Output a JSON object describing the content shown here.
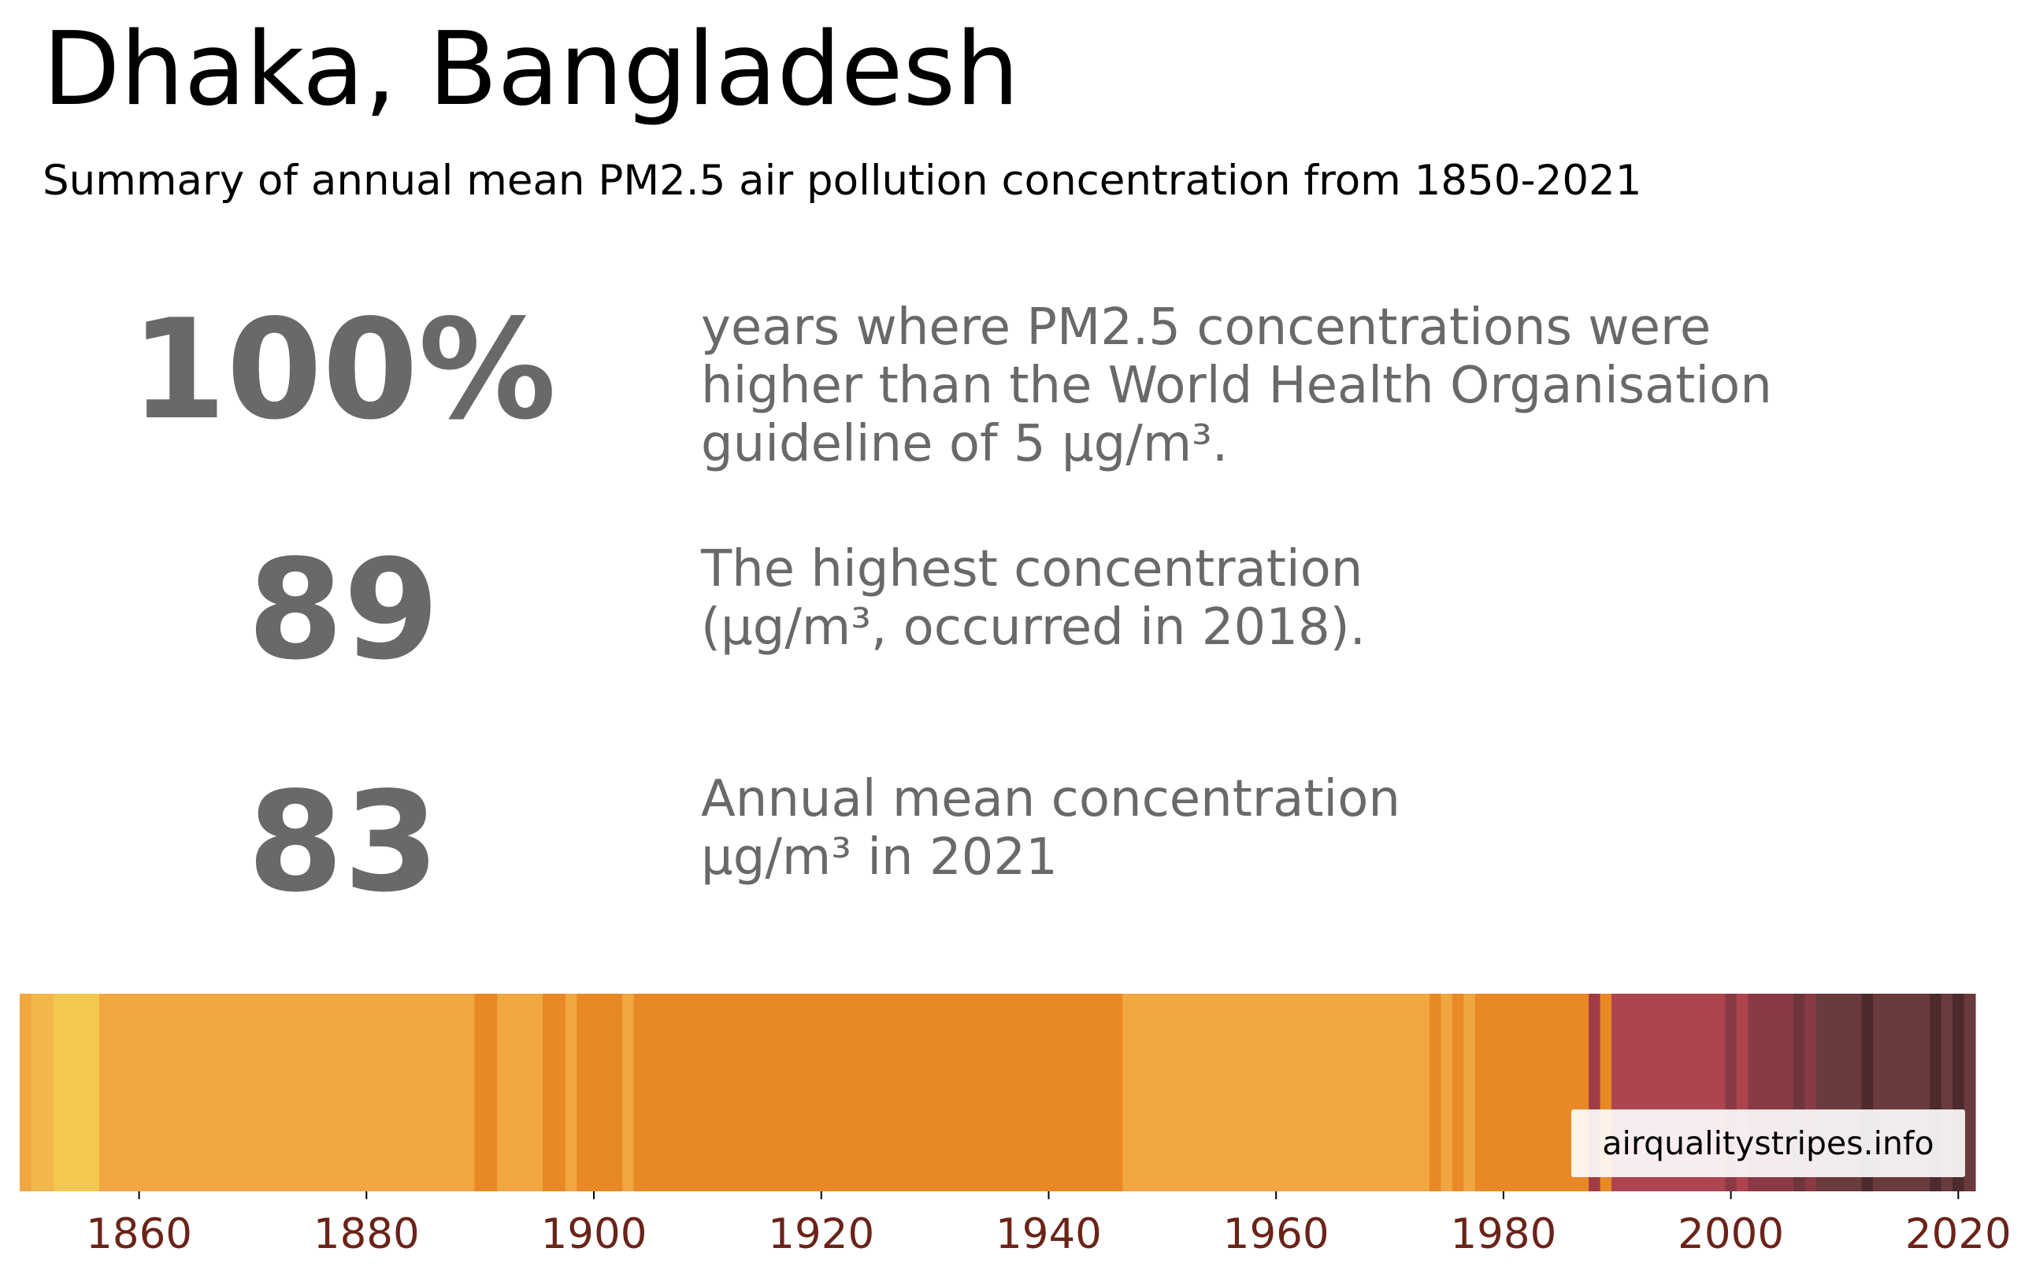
{
  "title": "Dhaka, Bangladesh",
  "subtitle": "Summary of annual mean PM2.5 air pollution concentration from 1850-2021",
  "stats": [
    {
      "value": "100%",
      "lines": [
        "years where PM2.5 concentrations were",
        "higher than the World Health Organisation",
        "guideline of 5 µg/m³."
      ]
    },
    {
      "value": "89",
      "lines": [
        "The highest concentration",
        "(µg/m³, occurred in 2018)."
      ]
    },
    {
      "value": "83",
      "lines": [
        "Annual mean concentration",
        "µg/m³ in 2021"
      ]
    }
  ],
  "credit": "airqualitystripes.info",
  "colors": {
    "tick_label": "#6b2318",
    "stat_text": "#696969"
  },
  "chart_data": {
    "type": "heatmap",
    "x_axis": {
      "range": [
        1850,
        2021
      ],
      "ticks": [
        1860,
        1880,
        1900,
        1920,
        1940,
        1960,
        1980,
        2000,
        2020
      ]
    },
    "stripes": [
      {
        "from": 1850,
        "to": 1850,
        "color": "#f0a641"
      },
      {
        "from": 1851,
        "to": 1852,
        "color": "#f2b74a"
      },
      {
        "from": 1853,
        "to": 1856,
        "color": "#f2c84e"
      },
      {
        "from": 1857,
        "to": 1889,
        "color": "#f0a641"
      },
      {
        "from": 1890,
        "to": 1891,
        "color": "#e88925"
      },
      {
        "from": 1892,
        "to": 1895,
        "color": "#f0a641"
      },
      {
        "from": 1896,
        "to": 1897,
        "color": "#e88925"
      },
      {
        "from": 1898,
        "to": 1898,
        "color": "#f0a641"
      },
      {
        "from": 1899,
        "to": 1902,
        "color": "#e88925"
      },
      {
        "from": 1903,
        "to": 1903,
        "color": "#f0a641"
      },
      {
        "from": 1904,
        "to": 1946,
        "color": "#e88925"
      },
      {
        "from": 1947,
        "to": 1973,
        "color": "#f0a641"
      },
      {
        "from": 1974,
        "to": 1974,
        "color": "#e88925"
      },
      {
        "from": 1975,
        "to": 1975,
        "color": "#f0a641"
      },
      {
        "from": 1976,
        "to": 1976,
        "color": "#e88925"
      },
      {
        "from": 1977,
        "to": 1977,
        "color": "#f0a641"
      },
      {
        "from": 1978,
        "to": 1987,
        "color": "#e88925"
      },
      {
        "from": 1988,
        "to": 1988,
        "color": "#9e3d47"
      },
      {
        "from": 1989,
        "to": 1989,
        "color": "#e88925"
      },
      {
        "from": 1990,
        "to": 1999,
        "color": "#ad4450"
      },
      {
        "from": 2000,
        "to": 2000,
        "color": "#8a3a44"
      },
      {
        "from": 2001,
        "to": 2001,
        "color": "#ad4450"
      },
      {
        "from": 2002,
        "to": 2005,
        "color": "#8a3a44"
      },
      {
        "from": 2006,
        "to": 2006,
        "color": "#6e353b"
      },
      {
        "from": 2007,
        "to": 2007,
        "color": "#8a3a44"
      },
      {
        "from": 2008,
        "to": 2011,
        "color": "#6b3a3c"
      },
      {
        "from": 2012,
        "to": 2012,
        "color": "#4d2a2c"
      },
      {
        "from": 2013,
        "to": 2017,
        "color": "#6b3a3c"
      },
      {
        "from": 2018,
        "to": 2018,
        "color": "#4d2a2c"
      },
      {
        "from": 2019,
        "to": 2019,
        "color": "#6b3a3c"
      },
      {
        "from": 2020,
        "to": 2020,
        "color": "#4d2a2c"
      },
      {
        "from": 2021,
        "to": 2021,
        "color": "#6b3a3c"
      }
    ]
  }
}
